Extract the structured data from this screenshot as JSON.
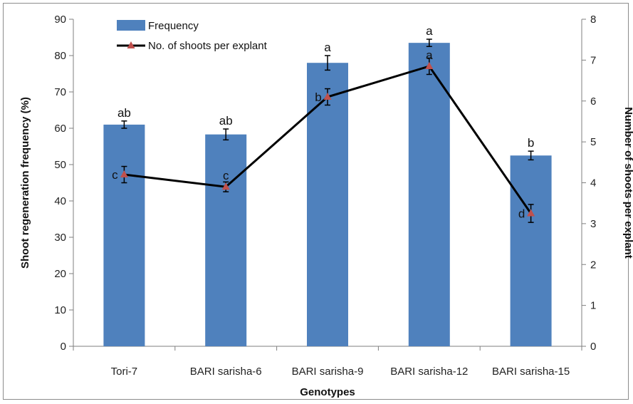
{
  "chart_data": {
    "type": "bar",
    "title": "",
    "xlabel": "Genotypes",
    "ylabel": "Shoot regeneration frequency (%)",
    "y2label": "Number of shoots per explant",
    "ylim": [
      0,
      90
    ],
    "y2lim": [
      0,
      8
    ],
    "yticks": [
      "0",
      "10",
      "20",
      "30",
      "40",
      "50",
      "60",
      "70",
      "80",
      "90"
    ],
    "y2ticks": [
      "0",
      "1",
      "2",
      "3",
      "4",
      "5",
      "6",
      "7",
      "8"
    ],
    "categories": [
      "Tori-7",
      "BARI sarisha-6",
      "BARI sarisha-9",
      "BARI sarisha-12",
      "BARI sarisha-15"
    ],
    "legend_position": "top-left",
    "series": [
      {
        "name": "Frequency",
        "type": "bar",
        "axis": "left",
        "color": "#4f81bd",
        "values": [
          61,
          58.3,
          78,
          83.5,
          52.5
        ],
        "errors": [
          1.0,
          1.5,
          2.0,
          1.0,
          1.2
        ],
        "letters": [
          "ab",
          "ab",
          "a",
          "a",
          "b"
        ]
      },
      {
        "name": "No. of shoots per explant",
        "type": "line",
        "axis": "right",
        "color": "#000000",
        "marker_color": "#c0504d",
        "values": [
          4.2,
          3.9,
          6.1,
          6.85,
          3.25
        ],
        "errors": [
          0.2,
          0.12,
          0.2,
          0.2,
          0.22
        ],
        "letters": [
          "c",
          "c",
          "b",
          "a",
          "d"
        ]
      }
    ]
  }
}
